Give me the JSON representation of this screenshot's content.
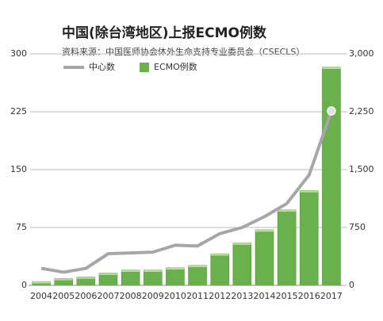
{
  "chart_data": {
    "type": "bar",
    "title": "中国(除台湾地区)上报ECMO例数",
    "subtitle": "资料来源：中国医师协会体外生命支持专业委员会（CSECLS）",
    "categories": [
      "2004",
      "2005",
      "2006",
      "2007",
      "2008",
      "2009",
      "2010",
      "2011",
      "2012",
      "2013",
      "2014",
      "2015",
      "2016",
      "2017"
    ],
    "series": [
      {
        "name": "中心数",
        "type": "line",
        "axis": "y",
        "color": "#a6a6a6",
        "values": [
          22,
          17,
          22,
          41,
          42,
          43,
          52,
          51,
          67,
          75,
          89,
          106,
          143,
          226
        ]
      },
      {
        "name": "ECMO例数",
        "type": "bar",
        "axis": "y2",
        "color": "#6ab04c",
        "values": [
          50,
          90,
          110,
          160,
          200,
          200,
          230,
          260,
          410,
          550,
          720,
          980,
          1230,
          2830
        ]
      }
    ],
    "ylim": [
      0,
      300
    ],
    "yticks": [
      0,
      75,
      150,
      225,
      300
    ],
    "y2lim": [
      0,
      3000
    ],
    "y2ticks": [
      0,
      750,
      {
        "value": 1500,
        "label": "1,500"
      },
      {
        "value": 2250,
        "label": "2,250"
      },
      {
        "value": 3000,
        "label": "3,000"
      }
    ],
    "grid": true
  }
}
